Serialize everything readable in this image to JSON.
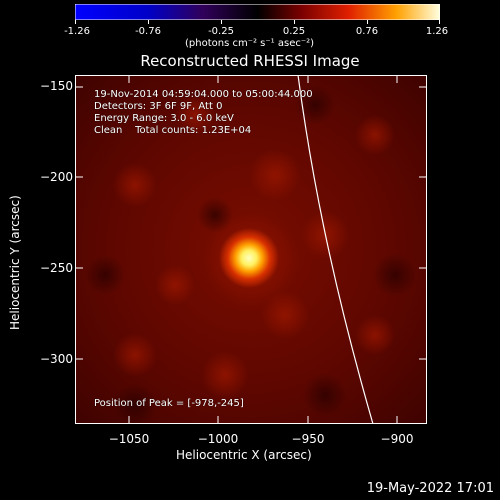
{
  "colorbar": {
    "ticks": [
      "-1.26",
      "-0.76",
      "-0.25",
      "0.25",
      "0.76",
      "1.26"
    ],
    "unit": "(photons cm⁻² s⁻¹ asec⁻²)"
  },
  "title": "Reconstructed RHESSI Image",
  "info": {
    "time_range": "19-Nov-2014 04:59:04.000 to 05:00:44.000",
    "detectors": "Detectors: 3F 6F 9F, Att 0",
    "energy": "Energy Range: 3.0 - 6.0 keV",
    "clean": "Clean    Total counts: 1.23E+04",
    "peak": "Position of Peak = [-978,-245]"
  },
  "axes": {
    "xlabel": "Heliocentric X (arcsec)",
    "ylabel": "Heliocentric Y (arcsec)",
    "xticks": [
      "−1050",
      "−1000",
      "−950",
      "−900"
    ],
    "yticks": [
      "−150",
      "−200",
      "−250",
      "−300"
    ]
  },
  "footer": "19-May-2022 17:01",
  "colors": {
    "background": "#000000",
    "accent": "#ffffff"
  }
}
